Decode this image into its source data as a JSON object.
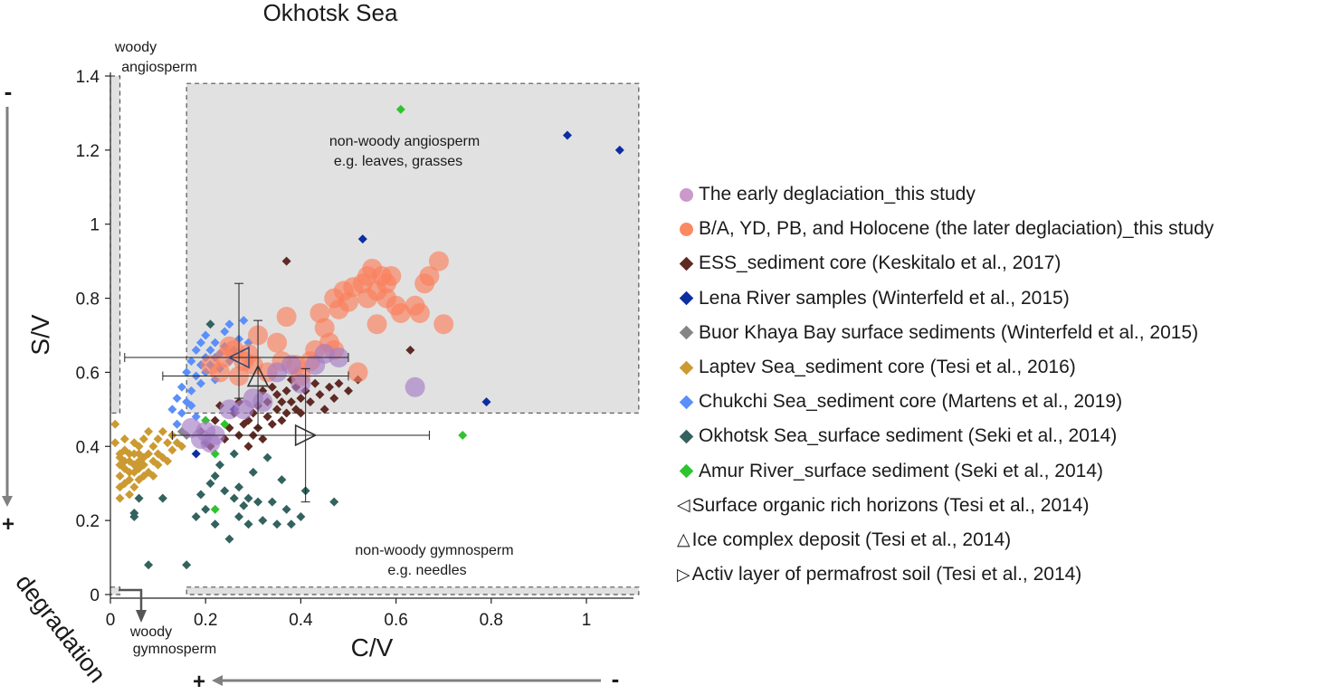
{
  "chart_data": {
    "type": "scatter",
    "title": "Okhotsk Sea",
    "xlabel": "C/V",
    "ylabel": "S/V",
    "xlim": [
      0,
      1.1
    ],
    "ylim": [
      0,
      1.4
    ],
    "xticks": [
      {
        "value": 0,
        "label": "0"
      },
      {
        "value": 0.2,
        "label": "0.2"
      },
      {
        "value": 0.4,
        "label": "0.4"
      },
      {
        "value": 0.6,
        "label": "0.6"
      },
      {
        "value": 0.8,
        "label": "0.8"
      },
      {
        "value": 1.0,
        "label": "1"
      }
    ],
    "yticks": [
      {
        "value": 0,
        "label": "0"
      },
      {
        "value": 0.2,
        "label": "0.2"
      },
      {
        "value": 0.4,
        "label": "0.4"
      },
      {
        "value": 0.6,
        "label": "0.6"
      },
      {
        "value": 0.8,
        "label": "0.8"
      },
      {
        "value": 1.0,
        "label": "1"
      },
      {
        "value": 1.2,
        "label": "1.2"
      },
      {
        "value": 1.4,
        "label": "1.4"
      }
    ],
    "regions": [
      {
        "label": "non-woody angiosperm",
        "label2": "e.g. leaves, grasses",
        "x": [
          0.16,
          1.11
        ],
        "y": [
          0.49,
          1.38
        ]
      },
      {
        "label": "woody",
        "label2": "angiosperm",
        "x": [
          0.0,
          0.02
        ],
        "y": [
          0.49,
          1.4
        ]
      },
      {
        "label": "non-woody gymnosperm",
        "label2": "e.g. needles",
        "x": [
          0.16,
          1.11
        ],
        "y": [
          0.0,
          0.02
        ]
      },
      {
        "label": "woody",
        "label2": "gymnosperm",
        "x": [
          0.0,
          0.02
        ],
        "y": [
          0.0,
          0.02
        ]
      }
    ],
    "annotations": {
      "degradation": "degradation",
      "plus": "+",
      "minus": "-"
    },
    "legend_position": "right",
    "series": [
      {
        "name": "The early deglaciation_this study",
        "marker": "circle",
        "size": "large",
        "color": "#a57dc5",
        "legend_color": "#cc99cc",
        "points": [
          [
            0.17,
            0.45
          ],
          [
            0.19,
            0.42
          ],
          [
            0.21,
            0.41
          ],
          [
            0.2,
            0.44
          ],
          [
            0.22,
            0.43
          ],
          [
            0.25,
            0.5
          ],
          [
            0.28,
            0.5
          ],
          [
            0.3,
            0.53
          ],
          [
            0.32,
            0.52
          ],
          [
            0.35,
            0.6
          ],
          [
            0.38,
            0.62
          ],
          [
            0.4,
            0.57
          ],
          [
            0.43,
            0.62
          ],
          [
            0.45,
            0.65
          ],
          [
            0.48,
            0.64
          ],
          [
            0.64,
            0.56
          ]
        ]
      },
      {
        "name": "B/A, YD, PB, and Holocene (the later deglaciation)_this study",
        "marker": "circle",
        "size": "large",
        "color": "#fb7f5c",
        "legend_color": "#fb8a62",
        "points": [
          [
            0.21,
            0.62
          ],
          [
            0.23,
            0.6
          ],
          [
            0.24,
            0.64
          ],
          [
            0.25,
            0.67
          ],
          [
            0.26,
            0.66
          ],
          [
            0.27,
            0.59
          ],
          [
            0.28,
            0.63
          ],
          [
            0.29,
            0.65
          ],
          [
            0.3,
            0.62
          ],
          [
            0.31,
            0.7
          ],
          [
            0.33,
            0.6
          ],
          [
            0.35,
            0.68
          ],
          [
            0.36,
            0.63
          ],
          [
            0.37,
            0.75
          ],
          [
            0.39,
            0.62
          ],
          [
            0.4,
            0.59
          ],
          [
            0.42,
            0.63
          ],
          [
            0.43,
            0.66
          ],
          [
            0.44,
            0.76
          ],
          [
            0.45,
            0.72
          ],
          [
            0.46,
            0.68
          ],
          [
            0.47,
            0.8
          ],
          [
            0.47,
            0.66
          ],
          [
            0.48,
            0.77
          ],
          [
            0.49,
            0.82
          ],
          [
            0.5,
            0.79
          ],
          [
            0.51,
            0.83
          ],
          [
            0.52,
            0.6
          ],
          [
            0.53,
            0.84
          ],
          [
            0.54,
            0.8
          ],
          [
            0.54,
            0.86
          ],
          [
            0.55,
            0.88
          ],
          [
            0.56,
            0.82
          ],
          [
            0.56,
            0.73
          ],
          [
            0.57,
            0.86
          ],
          [
            0.58,
            0.84
          ],
          [
            0.58,
            0.8
          ],
          [
            0.59,
            0.86
          ],
          [
            0.6,
            0.78
          ],
          [
            0.61,
            0.76
          ],
          [
            0.64,
            0.78
          ],
          [
            0.65,
            0.76
          ],
          [
            0.66,
            0.84
          ],
          [
            0.67,
            0.86
          ],
          [
            0.69,
            0.9
          ],
          [
            0.7,
            0.73
          ]
        ]
      },
      {
        "name": "ESS_sediment core (Keskitalo et al., 2017)",
        "marker": "diamond",
        "color": "#5e2a24",
        "points": [
          [
            0.19,
            0.44
          ],
          [
            0.21,
            0.4
          ],
          [
            0.22,
            0.47
          ],
          [
            0.23,
            0.51
          ],
          [
            0.24,
            0.42
          ],
          [
            0.25,
            0.45
          ],
          [
            0.26,
            0.49
          ],
          [
            0.27,
            0.43
          ],
          [
            0.27,
            0.52
          ],
          [
            0.28,
            0.46
          ],
          [
            0.29,
            0.4
          ],
          [
            0.29,
            0.47
          ],
          [
            0.3,
            0.43
          ],
          [
            0.3,
            0.49
          ],
          [
            0.31,
            0.51
          ],
          [
            0.31,
            0.45
          ],
          [
            0.32,
            0.42
          ],
          [
            0.32,
            0.55
          ],
          [
            0.33,
            0.48
          ],
          [
            0.33,
            0.52
          ],
          [
            0.34,
            0.46
          ],
          [
            0.34,
            0.56
          ],
          [
            0.35,
            0.5
          ],
          [
            0.35,
            0.54
          ],
          [
            0.36,
            0.47
          ],
          [
            0.36,
            0.52
          ],
          [
            0.37,
            0.55
          ],
          [
            0.37,
            0.49
          ],
          [
            0.38,
            0.58
          ],
          [
            0.38,
            0.52
          ],
          [
            0.39,
            0.56
          ],
          [
            0.39,
            0.5
          ],
          [
            0.4,
            0.53
          ],
          [
            0.4,
            0.49
          ],
          [
            0.41,
            0.55
          ],
          [
            0.42,
            0.52
          ],
          [
            0.43,
            0.57
          ],
          [
            0.44,
            0.54
          ],
          [
            0.45,
            0.5
          ],
          [
            0.46,
            0.56
          ],
          [
            0.47,
            0.53
          ],
          [
            0.48,
            0.57
          ],
          [
            0.5,
            0.55
          ],
          [
            0.52,
            0.58
          ],
          [
            0.37,
            0.9
          ],
          [
            0.63,
            0.66
          ]
        ]
      },
      {
        "name": "Lena River samples (Winterfeld et al., 2015)",
        "marker": "diamond",
        "color": "#0d2ea0",
        "points": [
          [
            0.96,
            1.24
          ],
          [
            1.07,
            1.2
          ],
          [
            0.53,
            0.96
          ],
          [
            0.79,
            0.52
          ],
          [
            0.18,
            0.38
          ],
          [
            0.26,
            0.5
          ]
        ]
      },
      {
        "name": "Buor Khaya Bay surface sediments (Winterfeld et al., 2015)",
        "marker": "diamond",
        "color": "#858585",
        "points": [
          [
            0.15,
            0.44
          ],
          [
            0.16,
            0.43
          ],
          [
            0.2,
            0.47
          ]
        ]
      },
      {
        "name": "Laptev Sea_sediment core (Tesi et al., 2016)",
        "marker": "diamond",
        "color": "#cc9a32",
        "points": [
          [
            0.01,
            0.46
          ],
          [
            0.01,
            0.41
          ],
          [
            0.02,
            0.35
          ],
          [
            0.02,
            0.32
          ],
          [
            0.02,
            0.29
          ],
          [
            0.02,
            0.26
          ],
          [
            0.02,
            0.37
          ],
          [
            0.03,
            0.3
          ],
          [
            0.03,
            0.39
          ],
          [
            0.03,
            0.34
          ],
          [
            0.03,
            0.42
          ],
          [
            0.04,
            0.31
          ],
          [
            0.04,
            0.36
          ],
          [
            0.04,
            0.33
          ],
          [
            0.04,
            0.27
          ],
          [
            0.05,
            0.38
          ],
          [
            0.05,
            0.33
          ],
          [
            0.05,
            0.35
          ],
          [
            0.05,
            0.29
          ],
          [
            0.06,
            0.36
          ],
          [
            0.06,
            0.4
          ],
          [
            0.06,
            0.31
          ],
          [
            0.06,
            0.34
          ],
          [
            0.07,
            0.37
          ],
          [
            0.07,
            0.32
          ],
          [
            0.07,
            0.42
          ],
          [
            0.07,
            0.35
          ],
          [
            0.08,
            0.38
          ],
          [
            0.08,
            0.33
          ],
          [
            0.08,
            0.44
          ],
          [
            0.09,
            0.36
          ],
          [
            0.09,
            0.4
          ],
          [
            0.09,
            0.32
          ],
          [
            0.1,
            0.38
          ],
          [
            0.1,
            0.42
          ],
          [
            0.1,
            0.35
          ],
          [
            0.11,
            0.44
          ],
          [
            0.11,
            0.37
          ],
          [
            0.12,
            0.41
          ],
          [
            0.12,
            0.36
          ],
          [
            0.13,
            0.43
          ],
          [
            0.13,
            0.39
          ],
          [
            0.14,
            0.46
          ],
          [
            0.14,
            0.41
          ],
          [
            0.15,
            0.4
          ],
          [
            0.02,
            0.38
          ],
          [
            0.03,
            0.36
          ],
          [
            0.04,
            0.38
          ],
          [
            0.05,
            0.41
          ],
          [
            0.06,
            0.38
          ]
        ]
      },
      {
        "name": "Chukchi Sea_sediment core (Martens et al., 2019)",
        "marker": "diamond",
        "color": "#5b8ff9",
        "points": [
          [
            0.13,
            0.5
          ],
          [
            0.14,
            0.53
          ],
          [
            0.15,
            0.56
          ],
          [
            0.16,
            0.6
          ],
          [
            0.16,
            0.52
          ],
          [
            0.17,
            0.63
          ],
          [
            0.17,
            0.55
          ],
          [
            0.18,
            0.66
          ],
          [
            0.18,
            0.59
          ],
          [
            0.18,
            0.48
          ],
          [
            0.19,
            0.62
          ],
          [
            0.19,
            0.57
          ],
          [
            0.19,
            0.68
          ],
          [
            0.2,
            0.64
          ],
          [
            0.2,
            0.6
          ],
          [
            0.2,
            0.7
          ],
          [
            0.21,
            0.62
          ],
          [
            0.21,
            0.66
          ],
          [
            0.22,
            0.64
          ],
          [
            0.22,
            0.58
          ],
          [
            0.22,
            0.68
          ],
          [
            0.23,
            0.65
          ],
          [
            0.23,
            0.61
          ],
          [
            0.24,
            0.67
          ],
          [
            0.24,
            0.71
          ],
          [
            0.25,
            0.63
          ],
          [
            0.25,
            0.73
          ],
          [
            0.26,
            0.66
          ],
          [
            0.27,
            0.69
          ],
          [
            0.28,
            0.74
          ],
          [
            0.29,
            0.68
          ],
          [
            0.14,
            0.46
          ],
          [
            0.15,
            0.49
          ],
          [
            0.17,
            0.51
          ]
        ]
      },
      {
        "name": "Okhotsk Sea_surface sediment (Seki et al., 2014)",
        "marker": "diamond",
        "color": "#33625f",
        "points": [
          [
            0.05,
            0.22
          ],
          [
            0.05,
            0.21
          ],
          [
            0.06,
            0.26
          ],
          [
            0.08,
            0.08
          ],
          [
            0.11,
            0.26
          ],
          [
            0.16,
            0.08
          ],
          [
            0.18,
            0.21
          ],
          [
            0.19,
            0.27
          ],
          [
            0.2,
            0.41
          ],
          [
            0.21,
            0.3
          ],
          [
            0.21,
            0.73
          ],
          [
            0.22,
            0.19
          ],
          [
            0.22,
            0.32
          ],
          [
            0.23,
            0.35
          ],
          [
            0.24,
            0.28
          ],
          [
            0.25,
            0.15
          ],
          [
            0.26,
            0.26
          ],
          [
            0.26,
            0.38
          ],
          [
            0.27,
            0.21
          ],
          [
            0.27,
            0.29
          ],
          [
            0.28,
            0.24
          ],
          [
            0.29,
            0.19
          ],
          [
            0.29,
            0.26
          ],
          [
            0.3,
            0.33
          ],
          [
            0.31,
            0.25
          ],
          [
            0.32,
            0.2
          ],
          [
            0.33,
            0.37
          ],
          [
            0.34,
            0.25
          ],
          [
            0.35,
            0.19
          ],
          [
            0.36,
            0.31
          ],
          [
            0.37,
            0.23
          ],
          [
            0.38,
            0.19
          ],
          [
            0.4,
            0.21
          ],
          [
            0.41,
            0.28
          ],
          [
            0.47,
            0.25
          ],
          [
            0.2,
            0.23
          ]
        ]
      },
      {
        "name": "Amur River_surface sediment (Seki et al., 2014)",
        "marker": "diamond",
        "color": "#2ec42e",
        "points": [
          [
            0.61,
            1.31
          ],
          [
            0.74,
            0.43
          ],
          [
            0.2,
            0.47
          ],
          [
            0.22,
            0.38
          ],
          [
            0.22,
            0.23
          ],
          [
            0.24,
            0.46
          ]
        ]
      },
      {
        "name": "Surface organic rich horizons (Tesi et al., 2014)",
        "marker": "triangle-left",
        "color": "#3a4a6e",
        "points": [
          [
            0.27,
            0.64
          ]
        ],
        "errorbars": {
          "x": [
            0.03,
            0.5
          ],
          "y": [
            0.53,
            0.84
          ]
        }
      },
      {
        "name": "Ice complex deposit (Tesi et al., 2014)",
        "marker": "triangle-up",
        "color": "#333333",
        "points": [
          [
            0.31,
            0.59
          ]
        ],
        "errorbars": {
          "x": [
            0.11,
            0.5
          ],
          "y": [
            0.45,
            0.74
          ]
        }
      },
      {
        "name": "Activ layer of permafrost soil (Tesi et al., 2014)",
        "marker": "triangle-right",
        "color": "#333333",
        "points": [
          [
            0.41,
            0.43
          ]
        ],
        "errorbars": {
          "x": [
            0.13,
            0.67
          ],
          "y": [
            0.25,
            0.61
          ]
        }
      }
    ]
  }
}
